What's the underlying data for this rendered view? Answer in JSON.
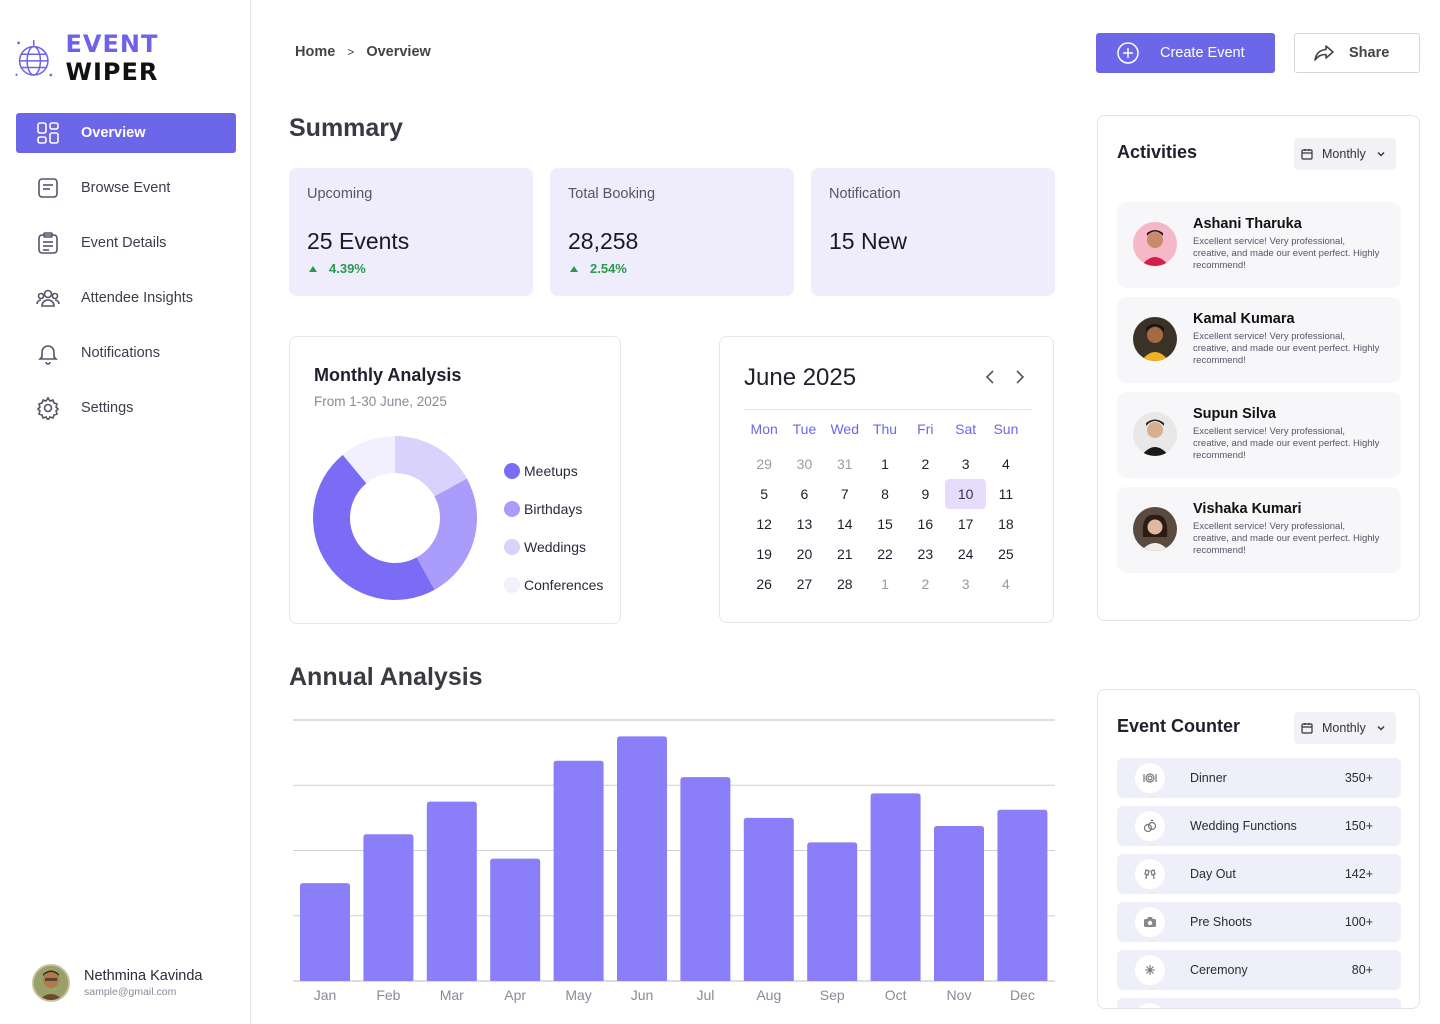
{
  "brand": {
    "part1": "EVENT",
    "part2": "WIPER"
  },
  "sidebar": {
    "items": [
      {
        "label": "Overview",
        "icon": "grid-icon",
        "active": true
      },
      {
        "label": "Browse Event",
        "icon": "browse-icon",
        "active": false
      },
      {
        "label": "Event Details",
        "icon": "clipboard-icon",
        "active": false
      },
      {
        "label": "Attendee Insights",
        "icon": "users-icon",
        "active": false
      },
      {
        "label": "Notifications",
        "icon": "bell-icon",
        "active": false
      },
      {
        "label": "Settings",
        "icon": "gear-icon",
        "active": false
      }
    ]
  },
  "user": {
    "name": "Nethmina Kavinda",
    "email": "sample@gmail.com"
  },
  "breadcrumb": {
    "home": "Home",
    "separator": ">",
    "current": "Overview"
  },
  "actions": {
    "create": "Create Event",
    "share": "Share"
  },
  "summary": {
    "title": "Summary",
    "cards": [
      {
        "label": "Upcoming",
        "value": "25 Events",
        "delta": "4.39%"
      },
      {
        "label": "Total Booking",
        "value": "28,258",
        "delta": "2.54%"
      },
      {
        "label": "Notification",
        "value": "15 New",
        "delta": ""
      }
    ]
  },
  "monthly": {
    "title": "Monthly Analysis",
    "subtitle": "From 1-30 June, 2025",
    "legend": [
      "Meetups",
      "Birthdays",
      "Weddings",
      "Conferences"
    ]
  },
  "calendar": {
    "title": "June 2025",
    "weekdays": [
      "Mon",
      "Tue",
      "Wed",
      "Thu",
      "Fri",
      "Sat",
      "Sun"
    ],
    "days": [
      [
        "29",
        "30",
        "31",
        "1",
        "2",
        "3",
        "4"
      ],
      [
        "5",
        "6",
        "7",
        "8",
        "9",
        "10",
        "11"
      ],
      [
        "12",
        "13",
        "14",
        "15",
        "16",
        "17",
        "18"
      ],
      [
        "19",
        "20",
        "21",
        "22",
        "23",
        "24",
        "25"
      ],
      [
        "26",
        "27",
        "28",
        "1",
        "2",
        "3",
        "4"
      ]
    ],
    "selected": "10"
  },
  "annual": {
    "title": "Annual Analysis"
  },
  "chart_data": [
    {
      "type": "pie",
      "title": "Monthly Analysis",
      "categories": [
        "Meetups",
        "Birthdays",
        "Weddings",
        "Conferences"
      ],
      "values": [
        47,
        25,
        17,
        11
      ],
      "colors": [
        "#7a6cf5",
        "#a99cfa",
        "#d9d2fc",
        "#f2f0fe"
      ]
    },
    {
      "type": "bar",
      "title": "Annual Analysis",
      "categories": [
        "Jan",
        "Feb",
        "Mar",
        "Apr",
        "May",
        "Jun",
        "Jul",
        "Aug",
        "Sep",
        "Oct",
        "Nov",
        "Dec"
      ],
      "values": [
        30,
        45,
        55,
        37.5,
        67.5,
        75,
        62.5,
        50,
        42.5,
        57.5,
        47.5,
        52.5
      ],
      "ylim": [
        0,
        80
      ],
      "grid": true,
      "color": "#8b7ef9"
    }
  ],
  "activities": {
    "title": "Activities",
    "filter": "Monthly",
    "items": [
      {
        "name": "Ashani Tharuka",
        "text": "Excellent service! Very professional, creative, and made our event perfect. Highly recommend!"
      },
      {
        "name": "Kamal Kumara",
        "text": "Excellent service! Very professional, creative, and made our event perfect. Highly recommend!"
      },
      {
        "name": "Supun Silva",
        "text": "Excellent service! Very professional, creative, and made our event perfect. Highly recommend!"
      },
      {
        "name": "Vishaka Kumari",
        "text": "Excellent service! Very professional, creative, and made our event perfect. Highly recommend!"
      }
    ]
  },
  "counter": {
    "title": "Event Counter",
    "filter": "Monthly",
    "rows": [
      {
        "label": "Dinner",
        "value": "350+",
        "icon": "dinner-icon"
      },
      {
        "label": "Wedding Functions",
        "value": "150+",
        "icon": "rings-icon"
      },
      {
        "label": "Day Out",
        "value": "142+",
        "icon": "cheers-icon"
      },
      {
        "label": "Pre Shoots",
        "value": "100+",
        "icon": "camera-icon"
      },
      {
        "label": "Ceremony",
        "value": "80+",
        "icon": "sparkle-icon"
      }
    ]
  }
}
